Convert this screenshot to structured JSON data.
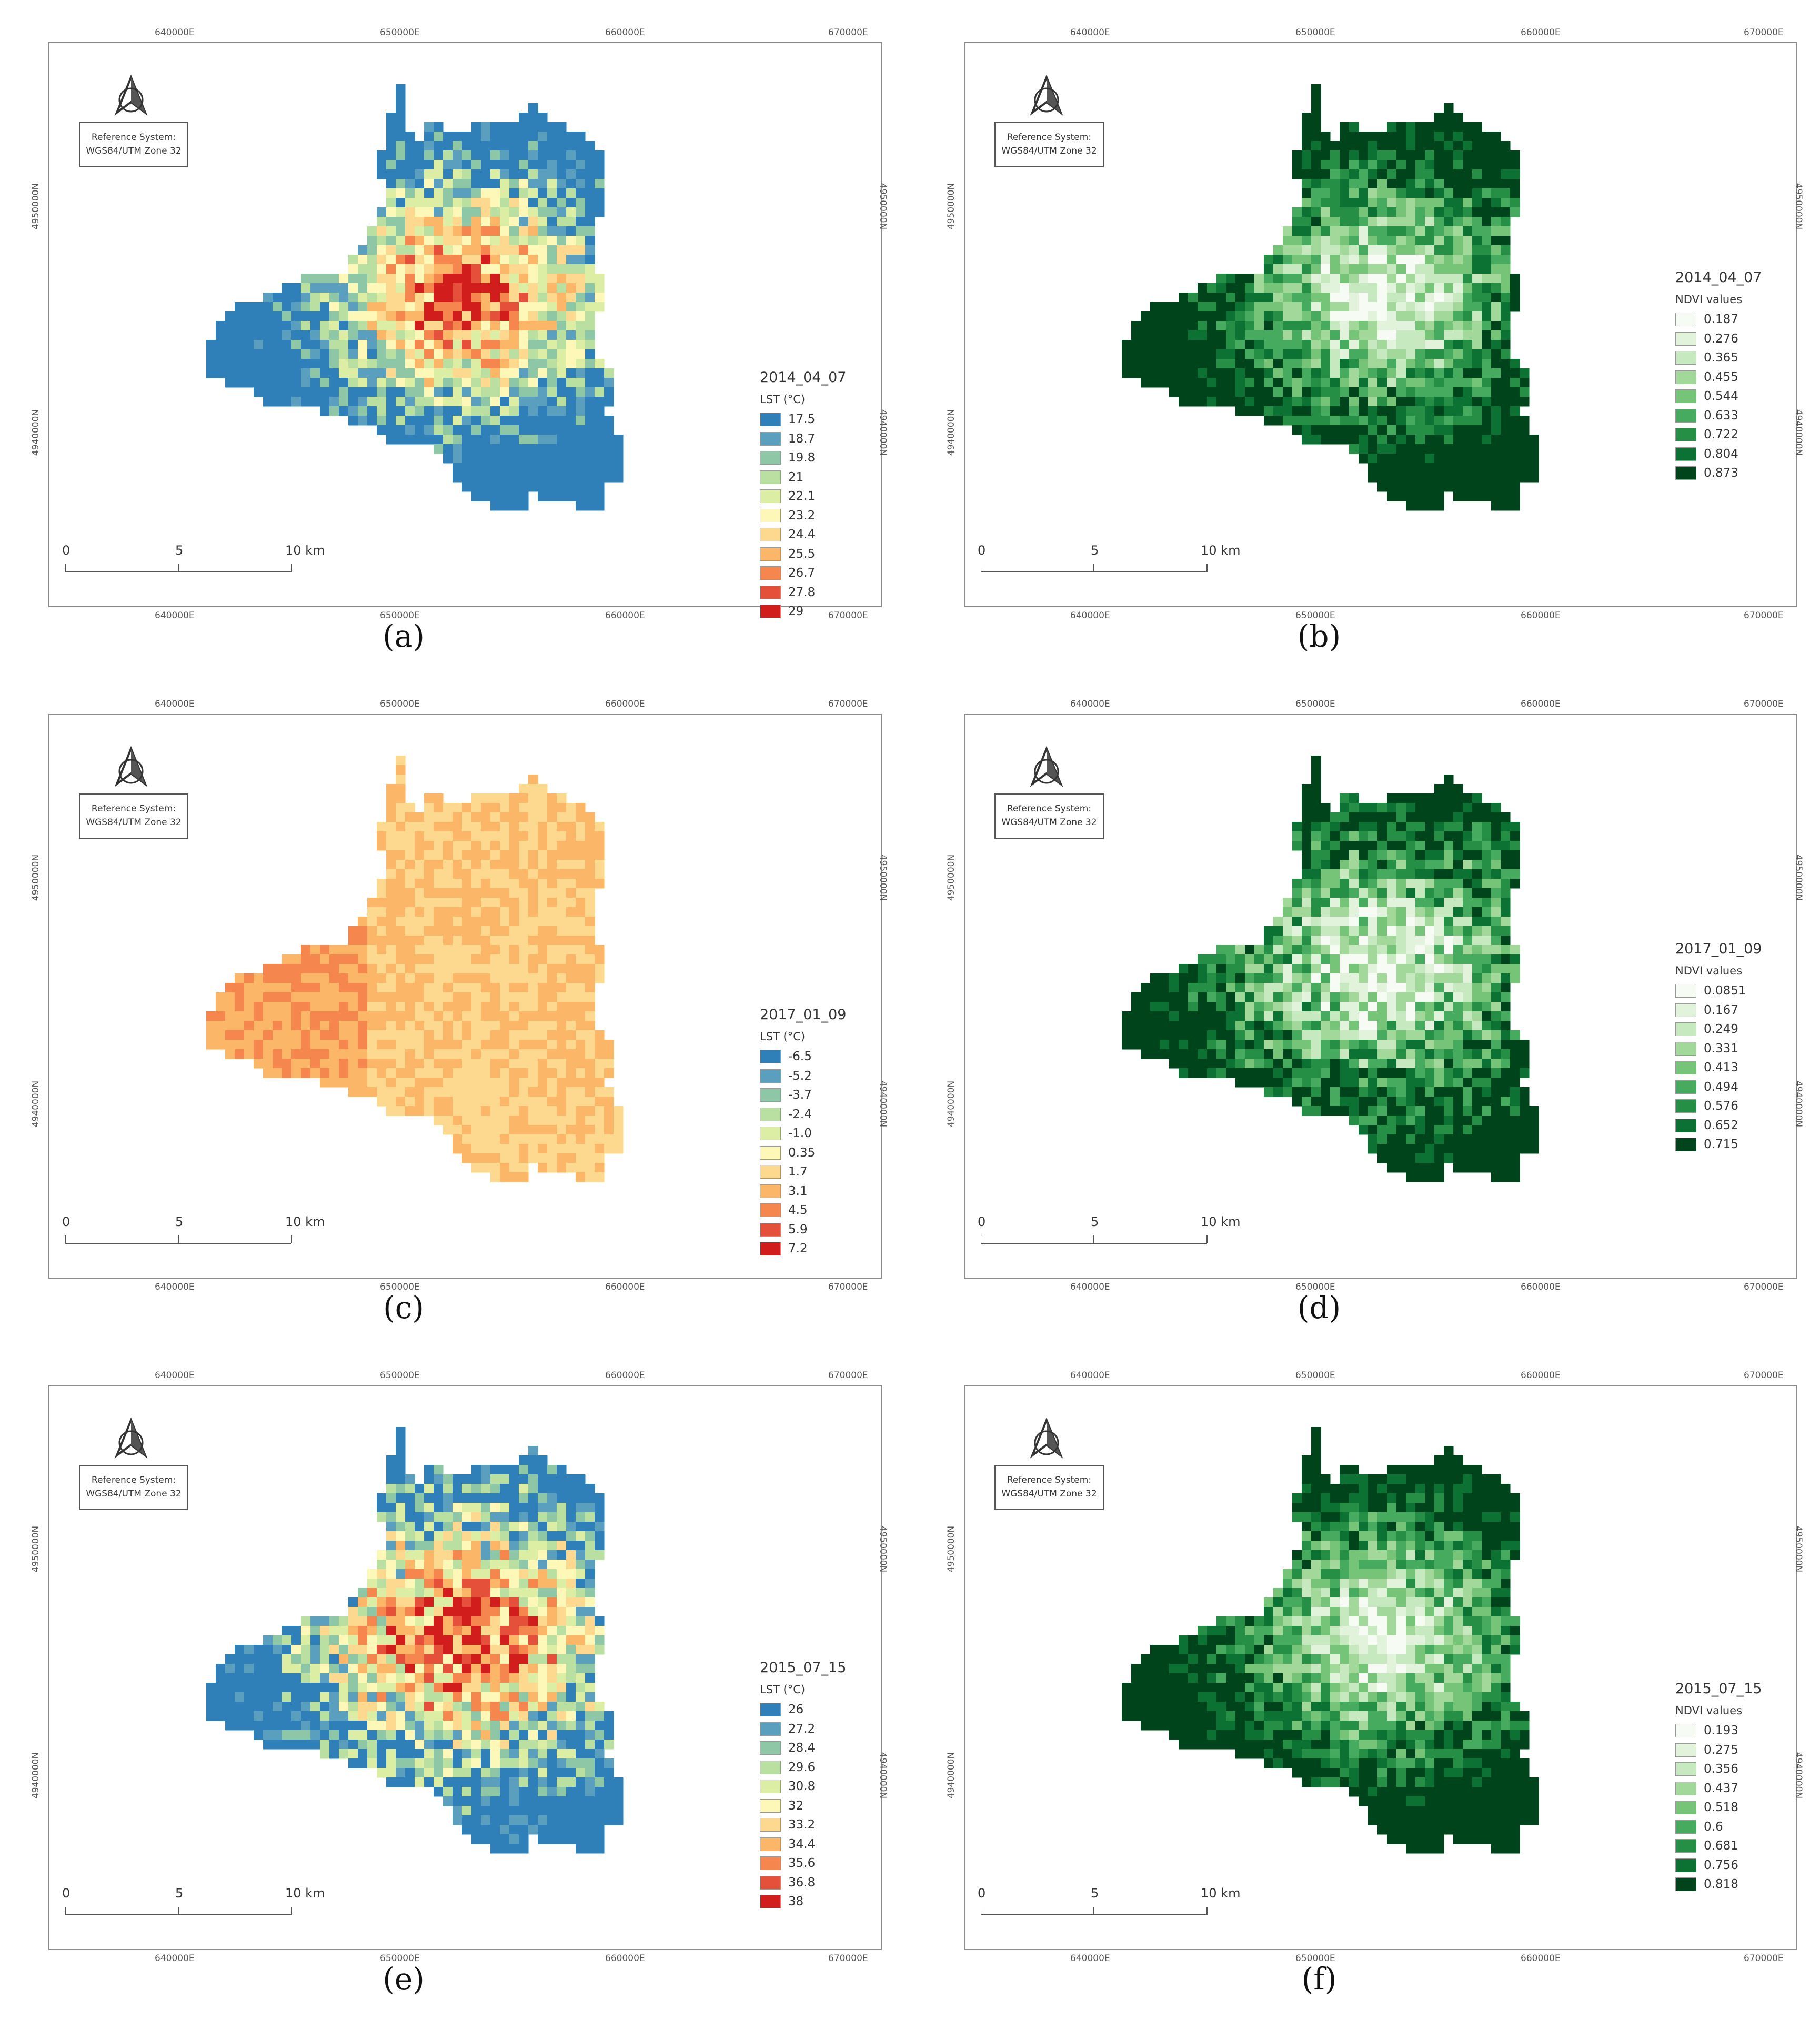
{
  "panels": [
    {
      "id": "a",
      "caption": "(a)",
      "kind": "lst",
      "date": "2014_04_07",
      "legend_sub": "LST (°C)",
      "classes": [
        "17.5",
        "18.7",
        "19.8",
        "21",
        "22.1",
        "23.2",
        "24.4",
        "25.5",
        "26.7",
        "27.8",
        "29"
      ],
      "colors": [
        "#2f7fb9",
        "#5b9fbf",
        "#8ec7a6",
        "#b9e0a0",
        "#dbeea4",
        "#fdf7b8",
        "#fdd88f",
        "#fbb767",
        "#f5874e",
        "#e4503a",
        "#d21d1d"
      ],
      "pattern": "urban-hot"
    },
    {
      "id": "b",
      "caption": "(b)",
      "kind": "ndvi",
      "date": "2014_04_07",
      "legend_sub": "NDVI values",
      "classes": [
        "0.187",
        "0.276",
        "0.365",
        "0.455",
        "0.544",
        "0.633",
        "0.722",
        "0.804",
        "0.873"
      ],
      "colors": [
        "#f6fbf4",
        "#e2f3dc",
        "#c7e9c0",
        "#a2d99b",
        "#75c477",
        "#46ab5e",
        "#248f45",
        "#0b7233",
        "#00441b"
      ],
      "pattern": "urban-low"
    },
    {
      "id": "c",
      "caption": "(c)",
      "kind": "lst",
      "date": "2017_01_09",
      "legend_sub": "LST (°C)",
      "classes": [
        "-6.5",
        "-5.2",
        "-3.7",
        "-2.4",
        "-1.0",
        "0.35",
        "1.7",
        "3.1",
        "4.5",
        "5.9",
        "7.2"
      ],
      "colors": [
        "#2f7fb9",
        "#5b9fbf",
        "#8ec7a6",
        "#b9e0a0",
        "#dbeea4",
        "#fdf7b8",
        "#fdd88f",
        "#fbb767",
        "#f5874e",
        "#e4503a",
        "#d21d1d"
      ],
      "pattern": "winter"
    },
    {
      "id": "d",
      "caption": "(d)",
      "kind": "ndvi",
      "date": "2017_01_09",
      "legend_sub": "NDVI values",
      "classes": [
        "0.0851",
        "0.167",
        "0.249",
        "0.331",
        "0.413",
        "0.494",
        "0.576",
        "0.652",
        "0.715"
      ],
      "colors": [
        "#f6fbf4",
        "#e2f3dc",
        "#c7e9c0",
        "#a2d99b",
        "#75c477",
        "#46ab5e",
        "#248f45",
        "#0b7233",
        "#00441b"
      ],
      "pattern": "urban-low-light"
    },
    {
      "id": "e",
      "caption": "(e)",
      "kind": "lst",
      "date": "2015_07_15",
      "legend_sub": "LST (°C)",
      "classes": [
        "26",
        "27.2",
        "28.4",
        "29.6",
        "30.8",
        "32",
        "33.2",
        "34.4",
        "35.6",
        "36.8",
        "38"
      ],
      "colors": [
        "#2f7fb9",
        "#5b9fbf",
        "#8ec7a6",
        "#b9e0a0",
        "#dbeea4",
        "#fdf7b8",
        "#fdd88f",
        "#fbb767",
        "#f5874e",
        "#e4503a",
        "#d21d1d"
      ],
      "pattern": "summer-hot"
    },
    {
      "id": "f",
      "caption": "(f)",
      "kind": "ndvi",
      "date": "2015_07_15",
      "legend_sub": "NDVI values",
      "classes": [
        "0.193",
        "0.275",
        "0.356",
        "0.437",
        "0.518",
        "0.6",
        "0.681",
        "0.756",
        "0.818"
      ],
      "colors": [
        "#f6fbf4",
        "#e2f3dc",
        "#c7e9c0",
        "#a2d99b",
        "#75c477",
        "#46ab5e",
        "#248f45",
        "#0b7233",
        "#00441b"
      ],
      "pattern": "urban-low"
    }
  ],
  "map": {
    "reference_system_line1": "Reference System:",
    "reference_system_line2": "WGS84/UTM Zone 32",
    "x_ticks": [
      "640000E",
      "650000E",
      "660000E",
      "670000E"
    ],
    "y_ticks": [
      "4950000N",
      "4940000N"
    ],
    "scale_labels": [
      "0",
      "5",
      "10 km"
    ],
    "north_icon": "north-arrow-icon"
  }
}
